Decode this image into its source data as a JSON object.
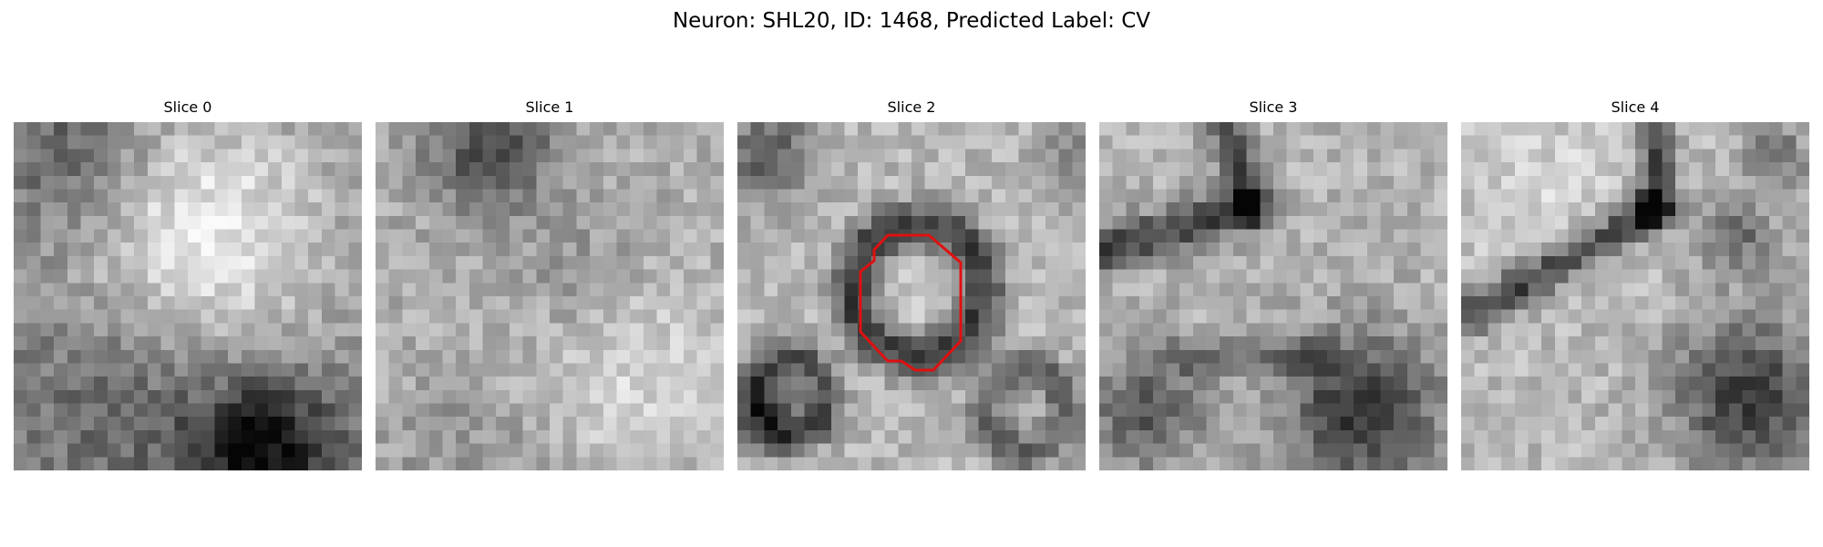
{
  "figure": {
    "title": "Neuron: SHL20, ID: 1468, Predicted Label: CV",
    "slices": [
      {
        "title": "Slice 0",
        "pattern": "bright-cell-top-center-dark-bottom-right",
        "has_outline": false
      },
      {
        "title": "Slice 1",
        "pattern": "mottled-gray-dark-top",
        "has_outline": false
      },
      {
        "title": "Slice 2",
        "pattern": "ring-center-dark-corners",
        "has_outline": true
      },
      {
        "title": "Slice 3",
        "pattern": "dark-bands-dark-bottom-right",
        "has_outline": false
      },
      {
        "title": "Slice 4",
        "pattern": "diagonal-dark-band-dark-bottom-right",
        "has_outline": false
      }
    ],
    "outline_color": "#e01010",
    "colormap": "grayscale"
  }
}
